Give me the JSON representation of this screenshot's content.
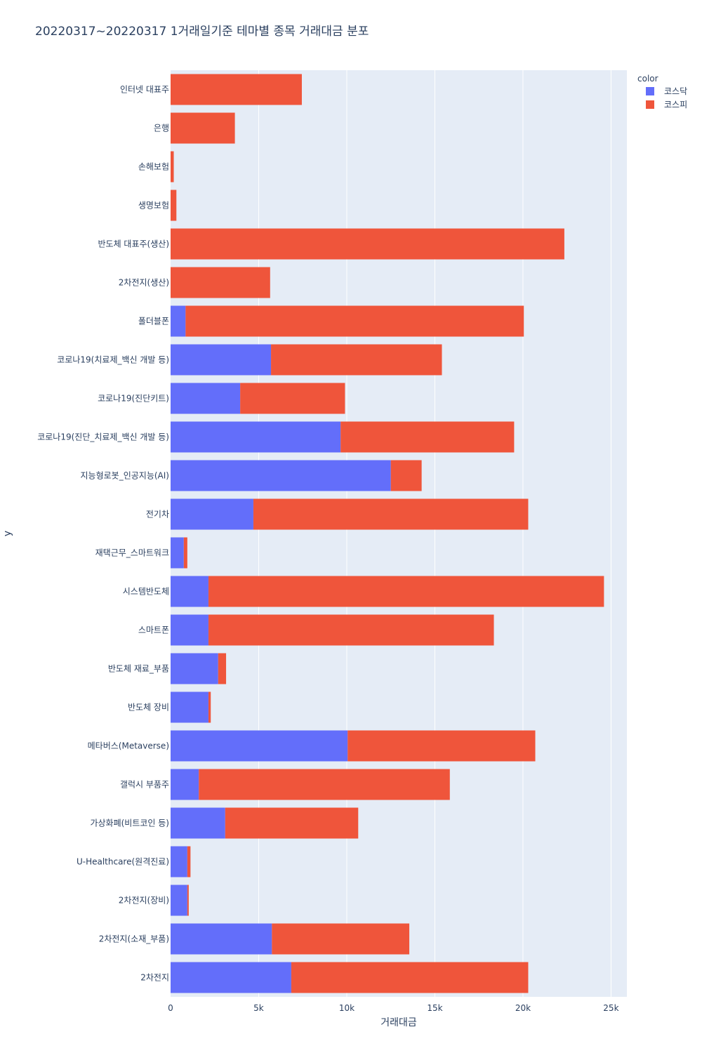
{
  "chart_data": {
    "type": "bar",
    "orientation": "horizontal",
    "barmode": "stack",
    "title": "20220317~20220317 1거래일기준 테마별 종목 거래대금 분포",
    "xlabel": "거래대금",
    "ylabel": "y",
    "xlim": [
      0,
      25900
    ],
    "xticks": [
      0,
      5000,
      10000,
      15000,
      20000,
      25000
    ],
    "xtick_labels": [
      "0",
      "5k",
      "10k",
      "15k",
      "20k",
      "25k"
    ],
    "grid": true,
    "legend_title": "color",
    "legend_position": "top-right",
    "categories": [
      "인터넷 대표주",
      "은행",
      "손해보험",
      "생명보험",
      "반도체 대표주(생산)",
      "2차전지(생산)",
      "폴더블폰",
      "코로나19(치료제_백신 개발 등)",
      "코로나19(진단키트)",
      "코로나19(진단_치료제_백신 개발 등)",
      "지능형로봇_인공지능(AI)",
      "전기차",
      "재택근무_스마트워크",
      "시스템반도체",
      "스마트폰",
      "반도체 재료_부품",
      "반도체 장비",
      "메타버스(Metaverse)",
      "갤럭시 부품주",
      "가상화폐(비트코인 등)",
      "U-Healthcare(원격진료)",
      "2차전지(장비)",
      "2차전지(소재_부품)",
      "2차전지"
    ],
    "series": [
      {
        "name": "코스닥",
        "color": "#636efa",
        "values": [
          0,
          0,
          0,
          0,
          0,
          0,
          850,
          5700,
          3950,
          9650,
          12500,
          4700,
          750,
          2150,
          2150,
          2700,
          2150,
          10050,
          1600,
          3100,
          950,
          950,
          5750,
          6850
        ]
      },
      {
        "name": "코스피",
        "color": "#ef553b",
        "values": [
          7450,
          3650,
          180,
          330,
          22350,
          5650,
          19200,
          9700,
          5950,
          9850,
          1750,
          15600,
          200,
          22450,
          16200,
          450,
          130,
          10650,
          14250,
          7550,
          180,
          80,
          7800,
          13450
        ]
      }
    ]
  }
}
